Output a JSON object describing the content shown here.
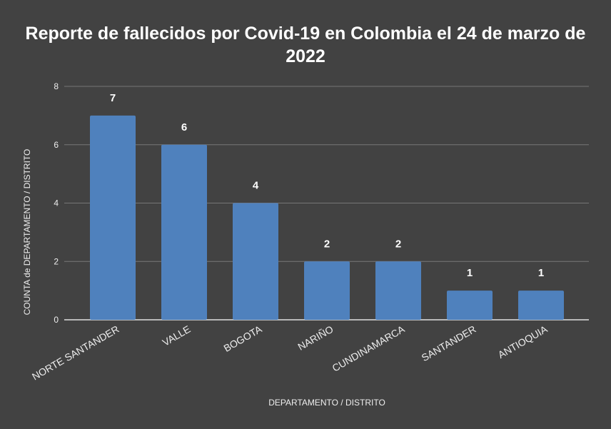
{
  "chart_data": {
    "type": "bar",
    "title_lines": [
      "Reporte de fallecidos por Covid-19 en Colombia el 24 de marzo de",
      "2022"
    ],
    "title": "Reporte de fallecidos por Covid-19 en Colombia el 24 de marzo de 2022",
    "xlabel": "DEPARTAMENTO / DISTRITO",
    "ylabel": "COUNTA de DEPARTAMENTO / DISTRITO",
    "categories": [
      "NORTE SANTANDER",
      "VALLE",
      "BOGOTA",
      "NARIÑO",
      "CUNDINAMARCA",
      "SANTANDER",
      "ANTIOQUIA"
    ],
    "values": [
      7,
      6,
      4,
      2,
      2,
      1,
      1
    ],
    "ylim": [
      0,
      8
    ],
    "yticks": [
      0,
      2,
      4,
      6,
      8
    ],
    "grid": true,
    "data_labels": true,
    "legend": "none",
    "colors": {
      "bar": "#4f81bd",
      "background": "#424242",
      "grid": "#777777"
    }
  }
}
